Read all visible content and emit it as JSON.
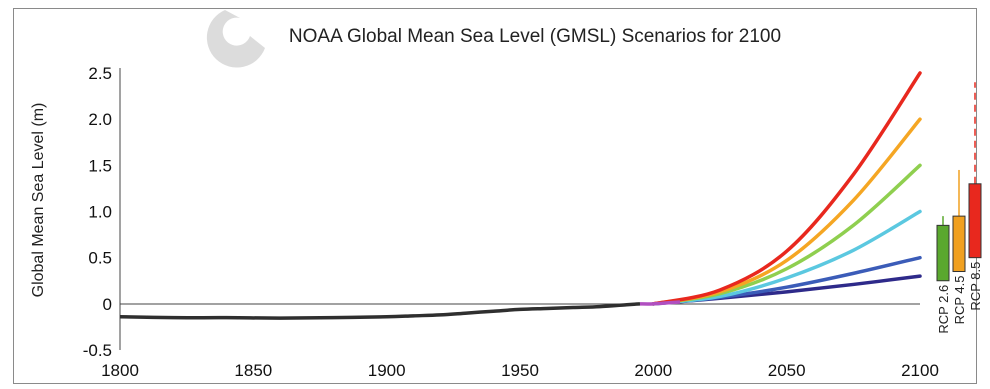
{
  "chart_data": {
    "type": "line",
    "title": "NOAA Global Mean Sea Level (GMSL) Scenarios for 2100",
    "xlabel": "",
    "ylabel": "Global Mean Sea Level (m)",
    "xlim": [
      1800,
      2100
    ],
    "ylim": [
      -0.5,
      2.5
    ],
    "x_ticks": [
      "1800",
      "1850",
      "1900",
      "1950",
      "2000",
      "2050",
      "2100"
    ],
    "y_ticks": [
      "2.5",
      "2.0",
      "1.5",
      "1.0",
      "0.5",
      "0",
      "-0.5"
    ],
    "historical": {
      "color": "#2f2f2f",
      "x": [
        1800,
        1820,
        1840,
        1860,
        1880,
        1900,
        1910,
        1920,
        1930,
        1940,
        1950,
        1960,
        1970,
        1980,
        1990,
        1995
      ],
      "y": [
        -0.14,
        -0.15,
        -0.15,
        -0.155,
        -0.15,
        -0.14,
        -0.13,
        -0.12,
        -0.1,
        -0.08,
        -0.06,
        -0.05,
        -0.04,
        -0.03,
        -0.01,
        0.0
      ]
    },
    "transition": {
      "color": "#b04fc0",
      "x": [
        1995,
        2000,
        2010
      ],
      "y": [
        0.0,
        0.0,
        0.02
      ]
    },
    "series": [
      {
        "color": "#2e2a8a",
        "x": [
          2000,
          2025,
          2050,
          2075,
          2100
        ],
        "y": [
          0.0,
          0.06,
          0.13,
          0.21,
          0.3
        ]
      },
      {
        "color": "#3b5cb8",
        "x": [
          2000,
          2025,
          2050,
          2075,
          2100
        ],
        "y": [
          0.0,
          0.07,
          0.18,
          0.33,
          0.5
        ]
      },
      {
        "color": "#5bc8e0",
        "x": [
          2000,
          2025,
          2050,
          2075,
          2100
        ],
        "y": [
          0.0,
          0.08,
          0.28,
          0.58,
          1.0
        ]
      },
      {
        "color": "#8fcf4f",
        "x": [
          2000,
          2025,
          2050,
          2075,
          2100
        ],
        "y": [
          0.0,
          0.11,
          0.38,
          0.85,
          1.5
        ]
      },
      {
        "color": "#f5a623",
        "x": [
          2000,
          2025,
          2050,
          2075,
          2100
        ],
        "y": [
          0.0,
          0.13,
          0.47,
          1.12,
          2.0
        ]
      },
      {
        "color": "#e8281e",
        "x": [
          2000,
          2025,
          2050,
          2075,
          2100
        ],
        "y": [
          0.0,
          0.15,
          0.57,
          1.4,
          2.5
        ]
      }
    ],
    "rcp_boxes": [
      {
        "label": "RCP 2.6",
        "color": "#5aa82e",
        "low": 0.25,
        "high": 0.85,
        "whisker_high": 0.95
      },
      {
        "label": "RCP 4.5",
        "color": "#f0a020",
        "low": 0.35,
        "high": 0.95,
        "whisker_high": 1.45
      },
      {
        "label": "RCP 8.5",
        "color": "#e8281e",
        "low": 0.5,
        "high": 1.3,
        "whisker_high": 2.4
      }
    ]
  }
}
